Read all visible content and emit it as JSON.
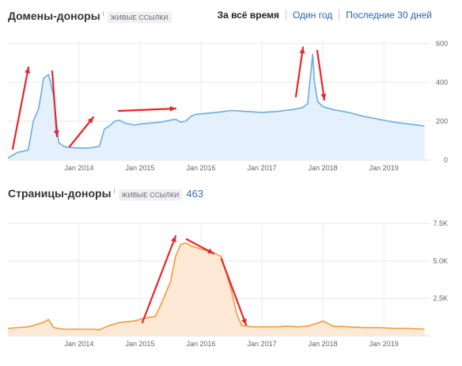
{
  "tabs": [
    "За всё время",
    "Один год",
    "Последние 30 дней"
  ],
  "chart_data": [
    {
      "type": "area",
      "title": "Домены-доноры",
      "badge": "живые ссылки",
      "info": "i",
      "x_ticks": [
        "Jan 2014",
        "Jan 2015",
        "Jan 2016",
        "Jan 2017",
        "Jan 2018",
        "Jan 2019"
      ],
      "y_ticks": [
        "0",
        "200",
        "400",
        "600"
      ],
      "ylim": [
        0,
        620
      ],
      "color": "#6aaee0",
      "fill": "#e4f0fb",
      "grid": true,
      "series": [
        {
          "x": [
            "2012-11",
            "2013-01",
            "2013-02",
            "2013-03",
            "2013-04",
            "2013-05",
            "2013-05",
            "2013-06",
            "2013-07",
            "2013-08",
            "2013-09",
            "2013-10",
            "2013-11",
            "2014-01",
            "2014-03",
            "2014-05",
            "2014-06",
            "2014-07",
            "2014-08",
            "2014-09",
            "2014-10",
            "2014-11",
            "2014-12",
            "2015-01",
            "2015-03",
            "2015-05",
            "2015-07",
            "2015-08",
            "2015-09",
            "2015-10",
            "2015-11",
            "2015-12",
            "2016-02",
            "2016-04",
            "2016-07",
            "2016-10",
            "2017-01",
            "2017-04",
            "2017-07",
            "2017-09",
            "2017-10",
            "2017-10",
            "2017-11",
            "2017-11",
            "2017-12",
            "2018-01",
            "2018-03",
            "2018-06",
            "2018-09",
            "2018-12",
            "2019-03",
            "2019-06",
            "2019-09"
          ],
          "values": [
            10,
            40,
            45,
            52,
            200,
            260,
            310,
            420,
            440,
            330,
            90,
            70,
            65,
            62,
            62,
            70,
            160,
            175,
            200,
            205,
            190,
            185,
            180,
            185,
            190,
            195,
            205,
            210,
            195,
            200,
            225,
            235,
            240,
            245,
            255,
            250,
            245,
            250,
            260,
            270,
            290,
            380,
            545,
            400,
            300,
            275,
            260,
            245,
            225,
            210,
            195,
            185,
            175
          ]
        }
      ]
    },
    {
      "type": "area",
      "title": "Страницы-доноры",
      "badge": "живые ссылки",
      "info": "i",
      "count": "463",
      "x_ticks": [
        "Jan 2014",
        "Jan 2015",
        "Jan 2016",
        "Jan 2017",
        "Jan 2018",
        "Jan 2019"
      ],
      "y_ticks": [
        "2.5K",
        "5.0K",
        "7.5K"
      ],
      "ylim": [
        0,
        7500
      ],
      "color": "#f39a3a",
      "fill": "#fde9d5",
      "grid": true,
      "series": [
        {
          "x": [
            "2012-11",
            "2013-03",
            "2013-06",
            "2013-07",
            "2013-08",
            "2013-10",
            "2014-01",
            "2014-04",
            "2014-05",
            "2014-07",
            "2014-09",
            "2014-12",
            "2015-02",
            "2015-04",
            "2015-05",
            "2015-07",
            "2015-08",
            "2015-09",
            "2015-10",
            "2015-11",
            "2016-01",
            "2016-03",
            "2016-05",
            "2016-06",
            "2016-07",
            "2016-08",
            "2016-09",
            "2016-11",
            "2017-01",
            "2017-04",
            "2017-06",
            "2017-08",
            "2017-10",
            "2017-12",
            "2018-01",
            "2018-03",
            "2018-06",
            "2018-09",
            "2018-12",
            "2019-03",
            "2019-06",
            "2019-09"
          ],
          "values": [
            500,
            600,
            900,
            1100,
            550,
            450,
            450,
            450,
            400,
            700,
            900,
            1000,
            1200,
            1300,
            2000,
            3600,
            5300,
            6100,
            6200,
            6000,
            5800,
            5600,
            5300,
            4200,
            3000,
            1500,
            700,
            600,
            600,
            600,
            650,
            600,
            650,
            850,
            1000,
            650,
            600,
            550,
            550,
            500,
            500,
            450
          ]
        }
      ]
    }
  ]
}
